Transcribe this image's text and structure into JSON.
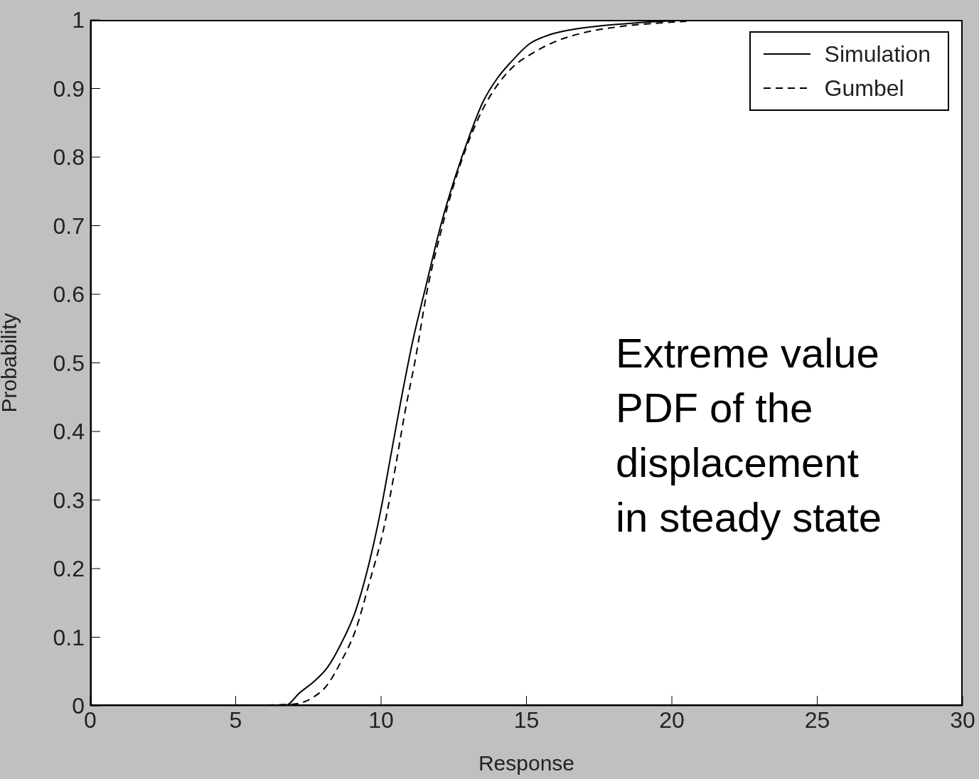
{
  "chart_data": {
    "type": "line",
    "xlabel": "Response",
    "ylabel": "Probability",
    "xlim": [
      0,
      30
    ],
    "xticks": [
      0,
      5,
      10,
      15,
      20,
      25,
      30
    ],
    "ylim": [
      0,
      1
    ],
    "yticks": [
      0,
      0.1,
      0.2,
      0.3,
      0.4,
      0.5,
      0.6,
      0.7,
      0.8,
      0.9,
      1
    ],
    "grid": false,
    "legend": "top right",
    "marker": "none",
    "annotations": [
      "Extreme value PDF of the displacement in steady state"
    ],
    "series": [
      {
        "name": "Simulation",
        "color": "#000000",
        "line_style": "solid",
        "x": [
          5,
          6.7,
          7.2,
          7.65,
          8.14,
          8.63,
          9.12,
          9.6,
          9.98,
          10.34,
          10.7,
          11.08,
          11.56,
          12.05,
          12.54,
          13.03,
          13.5,
          14,
          14.5,
          15.1,
          15.7,
          16.45,
          17.7,
          18.9,
          20.5
        ],
        "values": [
          0,
          0,
          0.019,
          0.034,
          0.055,
          0.091,
          0.138,
          0.21,
          0.283,
          0.366,
          0.449,
          0.53,
          0.615,
          0.7,
          0.77,
          0.83,
          0.88,
          0.915,
          0.94,
          0.965,
          0.977,
          0.985,
          0.992,
          0.996,
          1
        ]
      },
      {
        "name": "Gumbel",
        "color": "#000000",
        "line_style": "dashed",
        "x": [
          4,
          6.9,
          7.65,
          8.14,
          8.63,
          9.12,
          9.6,
          10.1,
          10.46,
          10.83,
          11.2,
          11.56,
          12.05,
          12.54,
          13.03,
          13.5,
          14,
          14.5,
          15.23,
          15.97,
          16.94,
          18.17,
          19.39,
          20.5
        ],
        "values": [
          0,
          0.002,
          0.012,
          0.03,
          0.065,
          0.11,
          0.18,
          0.26,
          0.34,
          0.43,
          0.51,
          0.6,
          0.69,
          0.765,
          0.825,
          0.87,
          0.905,
          0.93,
          0.952,
          0.968,
          0.981,
          0.99,
          0.995,
          0.998
        ]
      }
    ]
  }
}
